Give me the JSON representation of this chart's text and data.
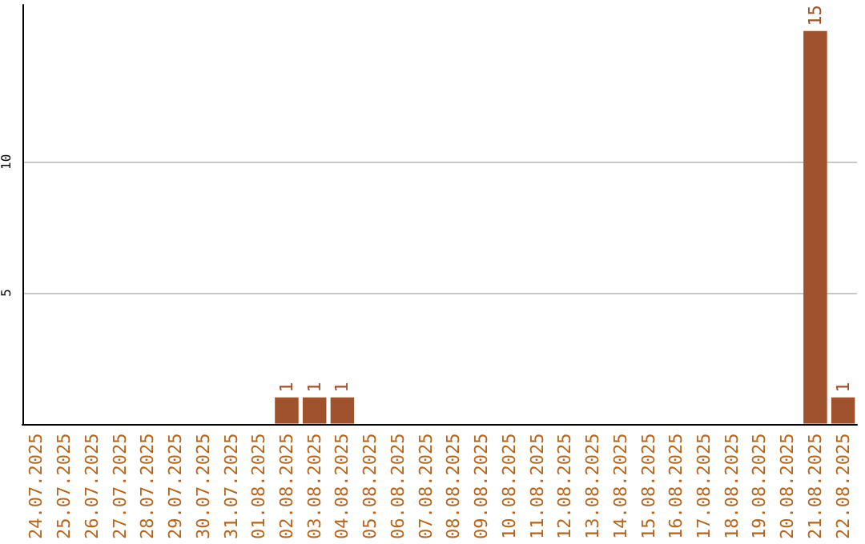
{
  "chart_data": {
    "type": "bar",
    "categories": [
      "24.07.2025",
      "25.07.2025",
      "26.07.2025",
      "27.07.2025",
      "28.07.2025",
      "29.07.2025",
      "30.07.2025",
      "31.07.2025",
      "01.08.2025",
      "02.08.2025",
      "03.08.2025",
      "04.08.2025",
      "05.08.2025",
      "06.08.2025",
      "07.08.2025",
      "08.08.2025",
      "09.08.2025",
      "10.08.2025",
      "11.08.2025",
      "12.08.2025",
      "13.08.2025",
      "14.08.2025",
      "15.08.2025",
      "16.08.2025",
      "17.08.2025",
      "18.08.2025",
      "19.08.2025",
      "20.08.2025",
      "21.08.2025",
      "22.08.2025"
    ],
    "values": [
      0,
      0,
      0,
      0,
      0,
      0,
      0,
      0,
      0,
      1,
      1,
      1,
      0,
      0,
      0,
      0,
      0,
      0,
      0,
      0,
      0,
      0,
      0,
      0,
      0,
      0,
      0,
      0,
      15,
      1
    ],
    "value_labels": [
      null,
      null,
      null,
      null,
      null,
      null,
      null,
      null,
      null,
      "1",
      "1",
      "1",
      null,
      null,
      null,
      null,
      null,
      null,
      null,
      null,
      null,
      null,
      null,
      null,
      null,
      null,
      null,
      null,
      "15",
      "1"
    ],
    "color": "#a0522d",
    "ylim": [
      0,
      16
    ],
    "yticks": [
      5,
      10
    ],
    "grid": "y"
  }
}
